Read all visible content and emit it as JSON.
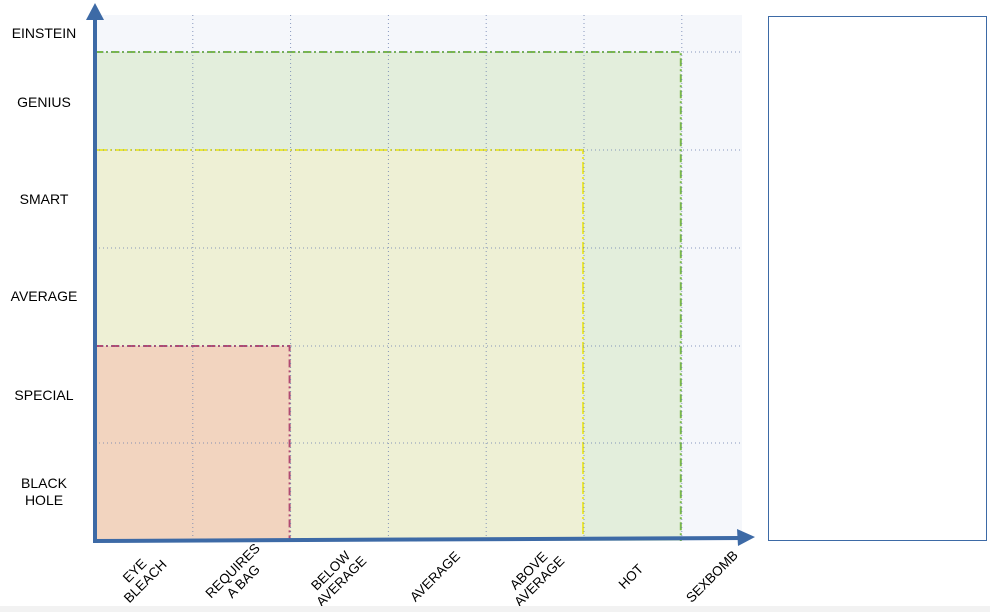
{
  "chart_data": {
    "type": "diagram",
    "y_labels": [
      "BLACK\nHOLE",
      "SPECIAL",
      "AVERAGE",
      "SMART",
      "GENIUS",
      "EINSTEIN"
    ],
    "x_labels": [
      "EYE\nBLEACH",
      "REQUIRES\nA BAG",
      "BELOW\nAVERAGE",
      "AVERAGE",
      "ABOVE\nAVERAGE",
      "HOT",
      "SEXBOMB"
    ],
    "regions": [
      {
        "x_max_index": 6,
        "y_max_index": 5,
        "fill": "#e3eedc",
        "stroke": "#79b84a",
        "dash": "8 3 2 3"
      },
      {
        "x_max_index": 5,
        "y_max_index": 4,
        "fill": "#eef0d5",
        "stroke": "#e9e63c",
        "dash": "12 3 2 3"
      },
      {
        "x_max_index": 2,
        "y_max_index": 2,
        "fill": "#f2d4bf",
        "stroke": "#b04a72",
        "dash": "8 3 2 3"
      }
    ],
    "colors": {
      "axis": "#3d6aa6",
      "grid": "#6c80b0",
      "plot_bg": "#f5f7fb"
    }
  }
}
